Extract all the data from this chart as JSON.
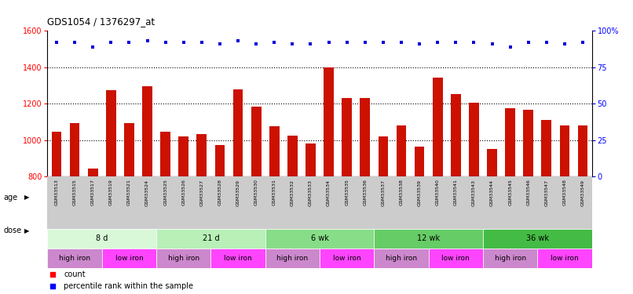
{
  "title": "GDS1054 / 1376297_at",
  "samples": [
    "GSM33513",
    "GSM33515",
    "GSM33517",
    "GSM33519",
    "GSM33521",
    "GSM33524",
    "GSM33525",
    "GSM33526",
    "GSM33527",
    "GSM33528",
    "GSM33529",
    "GSM33530",
    "GSM33531",
    "GSM33532",
    "GSM33533",
    "GSM33534",
    "GSM33535",
    "GSM33536",
    "GSM33537",
    "GSM33538",
    "GSM33539",
    "GSM33540",
    "GSM33541",
    "GSM33543",
    "GSM33544",
    "GSM33545",
    "GSM33546",
    "GSM33547",
    "GSM33548",
    "GSM33549"
  ],
  "counts": [
    1045,
    1095,
    845,
    1275,
    1095,
    1295,
    1045,
    1020,
    1035,
    975,
    1280,
    1185,
    1075,
    1025,
    980,
    1400,
    1230,
    1230,
    1020,
    1080,
    965,
    1345,
    1255,
    1205,
    950,
    1175,
    1165,
    1110,
    1080,
    1080
  ],
  "percentiles": [
    92,
    92,
    89,
    92,
    92,
    93,
    92,
    92,
    92,
    91,
    93,
    91,
    92,
    91,
    91,
    92,
    92,
    92,
    92,
    92,
    91,
    92,
    92,
    92,
    91,
    89,
    92,
    92,
    91,
    92
  ],
  "age_groups": [
    {
      "label": "8 d",
      "start": 0,
      "end": 6,
      "color": "#d8f8d8"
    },
    {
      "label": "21 d",
      "start": 6,
      "end": 12,
      "color": "#b8f0b8"
    },
    {
      "label": "6 wk",
      "start": 12,
      "end": 18,
      "color": "#88dd88"
    },
    {
      "label": "12 wk",
      "start": 18,
      "end": 24,
      "color": "#66cc66"
    },
    {
      "label": "36 wk",
      "start": 24,
      "end": 30,
      "color": "#44bb44"
    }
  ],
  "dose_high_color": "#cc88cc",
  "dose_low_color": "#ff44ff",
  "dose_groups": [
    {
      "label": "high iron",
      "start": 0,
      "end": 3,
      "type": "high"
    },
    {
      "label": "low iron",
      "start": 3,
      "end": 6,
      "type": "low"
    },
    {
      "label": "high iron",
      "start": 6,
      "end": 9,
      "type": "high"
    },
    {
      "label": "low iron",
      "start": 9,
      "end": 12,
      "type": "low"
    },
    {
      "label": "high iron",
      "start": 12,
      "end": 15,
      "type": "high"
    },
    {
      "label": "low iron",
      "start": 15,
      "end": 18,
      "type": "low"
    },
    {
      "label": "high iron",
      "start": 18,
      "end": 21,
      "type": "high"
    },
    {
      "label": "low iron",
      "start": 21,
      "end": 24,
      "type": "low"
    },
    {
      "label": "high iron",
      "start": 24,
      "end": 27,
      "type": "high"
    },
    {
      "label": "low iron",
      "start": 27,
      "end": 30,
      "type": "low"
    }
  ],
  "bar_color": "#cc1100",
  "dot_color": "#0000dd",
  "ylim_left": [
    800,
    1600
  ],
  "ylim_right": [
    0,
    100
  ],
  "yticks_left": [
    800,
    1000,
    1200,
    1400,
    1600
  ],
  "yticks_right": [
    0,
    25,
    50,
    75,
    100
  ],
  "tick_bg_color": "#cccccc",
  "background_color": "#ffffff"
}
